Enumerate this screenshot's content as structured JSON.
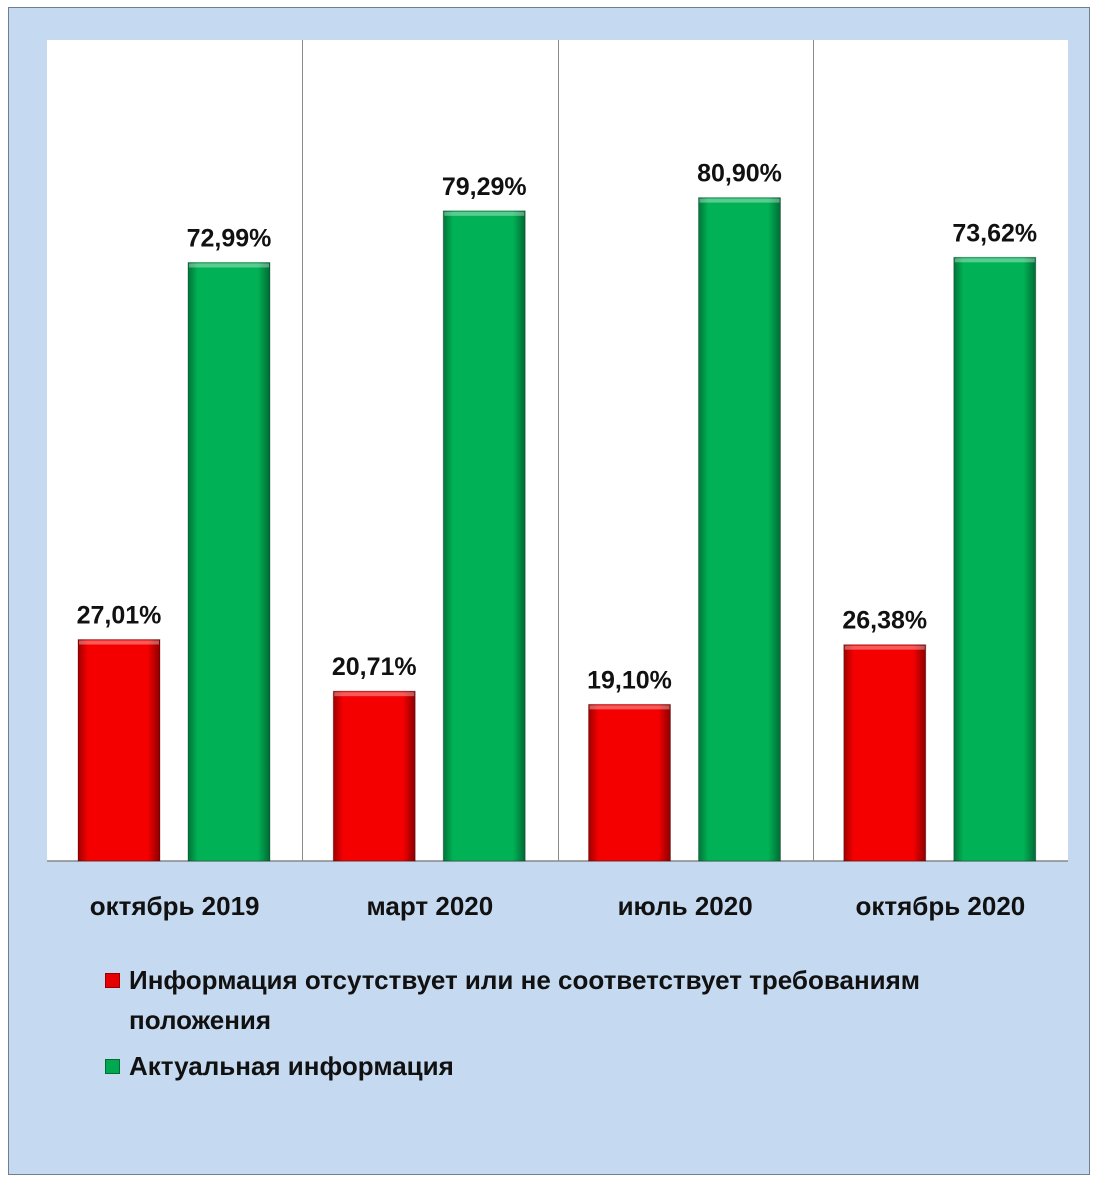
{
  "chart_data": {
    "type": "bar",
    "categories": [
      "октябрь 2019",
      "март 2020",
      "июль 2020",
      "октябрь 2020"
    ],
    "series": [
      {
        "name": "Информация отсутствует или не соответствует требованиям положения",
        "color": "#e60000",
        "values": [
          27.01,
          20.71,
          19.1,
          26.38
        ],
        "labels": [
          "27,01%",
          "20,71%",
          "19,10%",
          "26,38%"
        ]
      },
      {
        "name": "Актуальная информация",
        "color": "#00a84f",
        "values": [
          72.99,
          79.29,
          80.9,
          73.62
        ],
        "labels": [
          "72,99%",
          "79,29%",
          "80,90%",
          "73,62%"
        ]
      }
    ],
    "ylim": [
      0,
      100
    ],
    "grid": "vertical category separators",
    "legend": "bottom-left",
    "title": "",
    "xlabel": "",
    "ylabel": ""
  }
}
